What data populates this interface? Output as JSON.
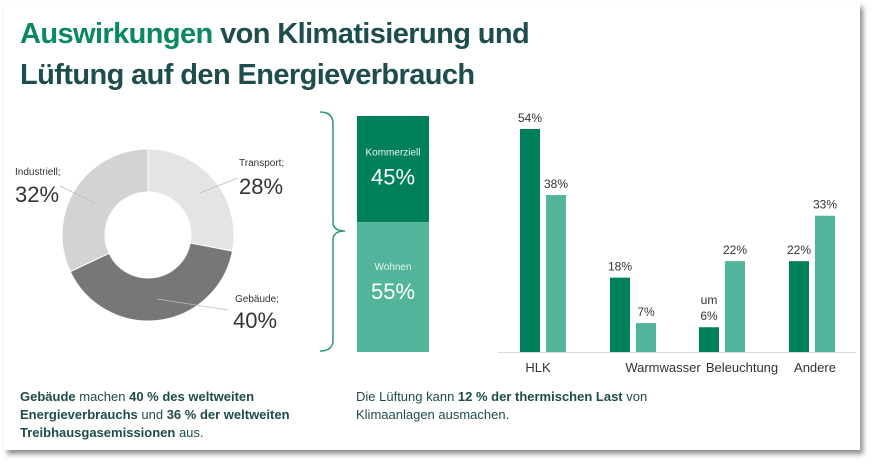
{
  "title": {
    "accent": "Auswirkungen",
    "line1_rest": " von Klimatisierung und",
    "line2": "Lüftung auf den Energieverbrauch"
  },
  "colors": {
    "accent": "#0a8a5b",
    "dark_text": "#1d4d4d",
    "bar_dark": "#00805a",
    "bar_light": "#52b49a"
  },
  "chart_data": [
    {
      "type": "pie",
      "donut": true,
      "slices": [
        {
          "label": "Transport;",
          "value": 28,
          "value_label": "28%",
          "color": "#e4e4e4"
        },
        {
          "label": "Gebäude;",
          "value": 40,
          "value_label": "40%",
          "color": "#777777"
        },
        {
          "label": "Industriell;",
          "value": 32,
          "value_label": "32%",
          "color": "#d3d3d3"
        }
      ]
    },
    {
      "type": "bar",
      "stacked": true,
      "segments": [
        {
          "label": "Kommerziell",
          "value": 45,
          "value_label": "45%",
          "color": "#00805a"
        },
        {
          "label": "Wohnen",
          "value": 55,
          "value_label": "55%",
          "color": "#52b49a"
        }
      ]
    },
    {
      "type": "bar",
      "categories": [
        "HLK",
        "Warmwasser",
        "Beleuchtung",
        "Andere"
      ],
      "series": [
        {
          "values": [
            54,
            18,
            6,
            22
          ],
          "labels": [
            "54%",
            "18%",
            "um|6%",
            "22%"
          ],
          "color": "#00805a"
        },
        {
          "values": [
            38,
            7,
            22,
            33
          ],
          "labels": [
            "38%",
            "7%",
            "22%",
            "33%"
          ],
          "color": "#52b49a"
        }
      ],
      "ylim": [
        0,
        60
      ],
      "grid": false
    }
  ],
  "footer": {
    "left": [
      {
        "t": "Gebäude",
        "b": true
      },
      {
        "t": " machen ",
        "b": false
      },
      {
        "t": "40 % des weltweiten Energieverbrauchs",
        "b": true
      },
      {
        "t": "  und ",
        "b": false
      },
      {
        "t": "36 % der weltweiten Treibhausgasemissionen",
        "b": true
      },
      {
        "t": " aus.",
        "b": false
      }
    ],
    "right": [
      {
        "t": "Die Lüftung kann ",
        "b": false
      },
      {
        "t": "12 % der thermischen Last",
        "b": true
      },
      {
        "t": " von Klimaanlagen ausmachen.",
        "b": false
      }
    ]
  }
}
